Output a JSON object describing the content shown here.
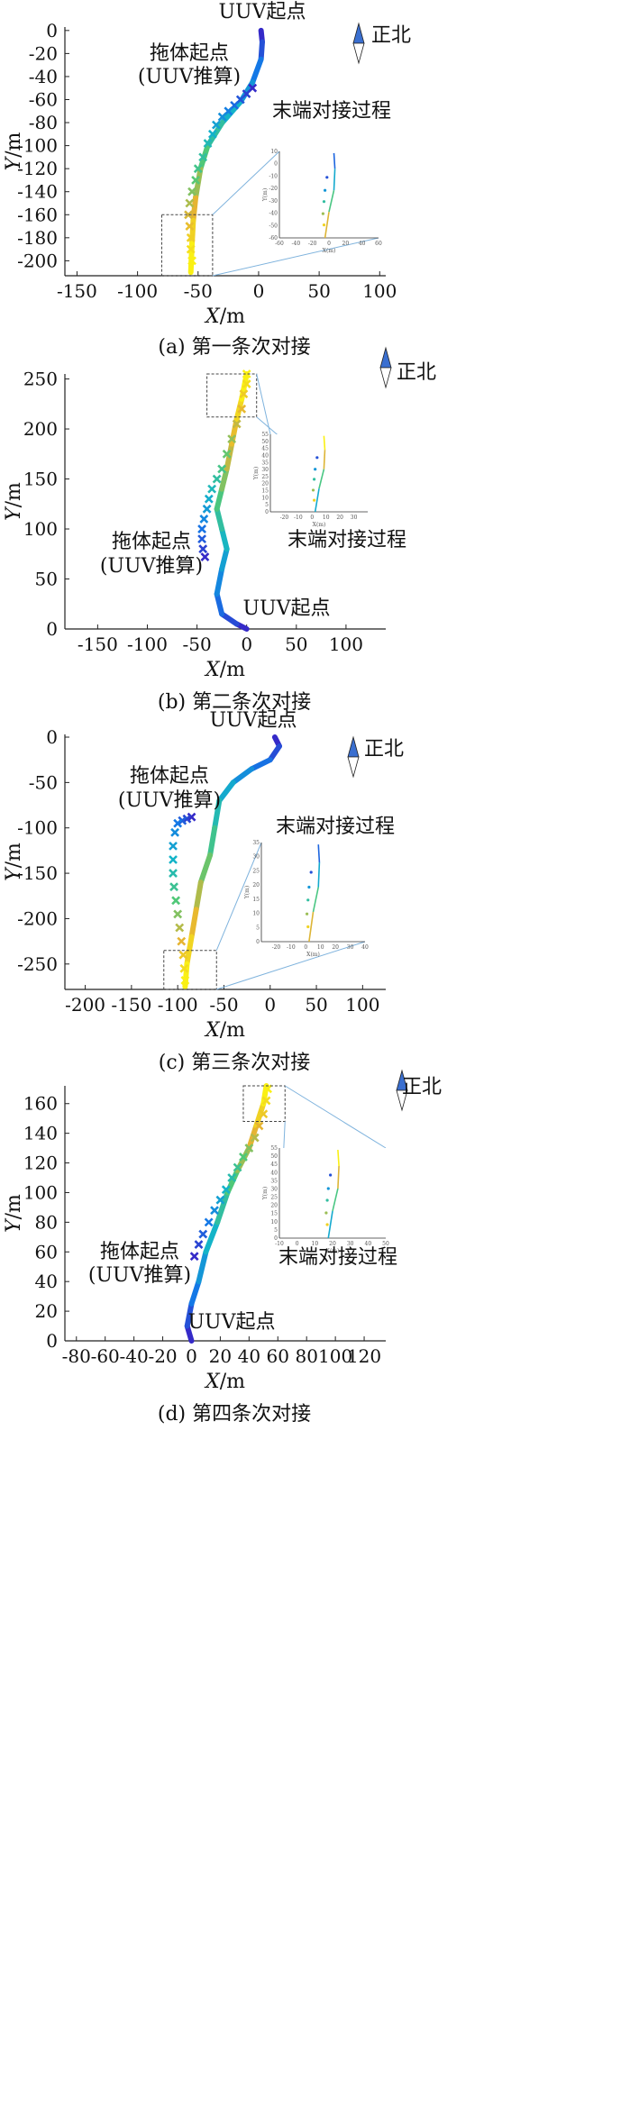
{
  "figure": {
    "north_label": "正北",
    "uuv_start_label": "UUV起点",
    "tow_start_label_line1": "拖体起点",
    "tow_start_label_line2": "(UUV推算)",
    "docking_label": "末端对接过程",
    "inset_xlabel": "X(m)",
    "inset_ylabel": "Y(m)"
  },
  "chart_data": [
    {
      "type": "line",
      "title": "(a) 第一条次对接",
      "xlabel": "X/m",
      "ylabel": "Y/m",
      "xlim": [
        -160,
        105
      ],
      "ylim": [
        -213,
        3
      ],
      "xticks": [
        -150,
        -100,
        -50,
        0,
        50,
        100
      ],
      "yticks": [
        0,
        -20,
        -40,
        -60,
        -80,
        -100,
        -120,
        -140,
        -160,
        -180,
        -200
      ],
      "uuv_track": [
        [
          2,
          0
        ],
        [
          3,
          -10
        ],
        [
          2,
          -25
        ],
        [
          -5,
          -45
        ],
        [
          -15,
          -62
        ],
        [
          -30,
          -80
        ],
        [
          -42,
          -100
        ],
        [
          -48,
          -120
        ],
        [
          -52,
          -145
        ],
        [
          -54,
          -165
        ],
        [
          -55,
          -185
        ],
        [
          -56,
          -210
        ]
      ],
      "tow_estimates": [
        [
          -5,
          -50
        ],
        [
          -10,
          -55
        ],
        [
          -15,
          -60
        ],
        [
          -20,
          -65
        ],
        [
          -25,
          -70
        ],
        [
          -30,
          -75
        ],
        [
          -35,
          -82
        ],
        [
          -38,
          -90
        ],
        [
          -42,
          -98
        ],
        [
          -46,
          -110
        ],
        [
          -50,
          -120
        ],
        [
          -52,
          -130
        ],
        [
          -55,
          -140
        ],
        [
          -57,
          -150
        ],
        [
          -58,
          -160
        ],
        [
          -57,
          -170
        ],
        [
          -56,
          -180
        ],
        [
          -56,
          -190
        ],
        [
          -55,
          -200
        ]
      ],
      "zoom_box": {
        "x": [
          -80,
          -38
        ],
        "y": [
          -213,
          -160
        ]
      },
      "inset": {
        "xlim": [
          -60,
          60
        ],
        "ylim": [
          -60,
          10
        ],
        "xticks": [
          -60,
          -40,
          -20,
          0,
          20,
          40,
          60
        ],
        "yticks": [
          10,
          0,
          -10,
          -20,
          -30,
          -40,
          -50,
          -60
        ]
      }
    },
    {
      "type": "line",
      "title": "(b) 第二条次对接",
      "xlabel": "X/m",
      "ylabel": "Y/m",
      "xlim": [
        -183,
        140
      ],
      "ylim": [
        0,
        255
      ],
      "xticks": [
        -150,
        -100,
        -50,
        0,
        50,
        100
      ],
      "yticks": [
        0,
        50,
        100,
        150,
        200,
        250
      ],
      "uuv_track": [
        [
          0,
          0
        ],
        [
          -10,
          5
        ],
        [
          -25,
          15
        ],
        [
          -30,
          35
        ],
        [
          -25,
          60
        ],
        [
          -20,
          80
        ],
        [
          -25,
          100
        ],
        [
          -30,
          120
        ],
        [
          -25,
          140
        ],
        [
          -20,
          160
        ],
        [
          -15,
          185
        ],
        [
          -10,
          210
        ],
        [
          -5,
          230
        ],
        [
          0,
          255
        ]
      ],
      "tow_estimates": [
        [
          -42,
          72
        ],
        [
          -44,
          80
        ],
        [
          -45,
          90
        ],
        [
          -45,
          100
        ],
        [
          -43,
          110
        ],
        [
          -40,
          120
        ],
        [
          -38,
          130
        ],
        [
          -35,
          140
        ],
        [
          -30,
          150
        ],
        [
          -25,
          160
        ],
        [
          -20,
          175
        ],
        [
          -15,
          190
        ],
        [
          -10,
          205
        ],
        [
          -5,
          220
        ],
        [
          -3,
          235
        ],
        [
          0,
          245
        ],
        [
          0,
          255
        ]
      ],
      "zoom_box": {
        "x": [
          -40,
          10
        ],
        "y": [
          212,
          255
        ]
      },
      "inset": {
        "xlim": [
          -30,
          40
        ],
        "ylim": [
          0,
          55
        ],
        "xticks": [
          -20,
          -10,
          0,
          10,
          20,
          30
        ],
        "yticks": [
          0,
          5,
          10,
          15,
          20,
          25,
          30,
          35,
          40,
          45,
          50,
          55
        ]
      }
    },
    {
      "type": "line",
      "title": "(c) 第三条次对接",
      "xlabel": "X/m",
      "ylabel": "Y/m",
      "xlim": [
        -222,
        125
      ],
      "ylim": [
        -278,
        3
      ],
      "xticks": [
        -200,
        -150,
        -100,
        -50,
        0,
        50,
        100
      ],
      "yticks": [
        0,
        -50,
        -100,
        -150,
        -200,
        -250
      ],
      "uuv_track": [
        [
          5,
          0
        ],
        [
          10,
          -10
        ],
        [
          0,
          -25
        ],
        [
          -20,
          -35
        ],
        [
          -40,
          -50
        ],
        [
          -55,
          -70
        ],
        [
          -60,
          -100
        ],
        [
          -65,
          -130
        ],
        [
          -75,
          -160
        ],
        [
          -80,
          -190
        ],
        [
          -85,
          -220
        ],
        [
          -90,
          -250
        ],
        [
          -92,
          -275
        ]
      ],
      "tow_estimates": [
        [
          -85,
          -88
        ],
        [
          -90,
          -90
        ],
        [
          -95,
          -92
        ],
        [
          -100,
          -95
        ],
        [
          -103,
          -105
        ],
        [
          -105,
          -120
        ],
        [
          -105,
          -135
        ],
        [
          -105,
          -150
        ],
        [
          -104,
          -165
        ],
        [
          -102,
          -180
        ],
        [
          -100,
          -195
        ],
        [
          -98,
          -210
        ],
        [
          -96,
          -225
        ],
        [
          -94,
          -240
        ],
        [
          -93,
          -255
        ],
        [
          -92,
          -268
        ]
      ],
      "zoom_box": {
        "x": [
          -115,
          -58
        ],
        "y": [
          -278,
          -235
        ]
      },
      "inset": {
        "xlim": [
          -30,
          40
        ],
        "ylim": [
          0,
          35
        ],
        "xticks": [
          -20,
          -10,
          0,
          10,
          20,
          30,
          40
        ],
        "yticks": [
          0,
          5,
          10,
          15,
          20,
          25,
          30,
          35
        ]
      }
    },
    {
      "type": "line",
      "title": "(d) 第四条次对接",
      "xlabel": "X/m",
      "ylabel": "Y/m",
      "xlim": [
        -88,
        135
      ],
      "ylim": [
        0,
        172
      ],
      "xticks": [
        -80,
        -60,
        -40,
        -20,
        0,
        20,
        40,
        60,
        80,
        100,
        120
      ],
      "yticks": [
        0,
        20,
        40,
        60,
        80,
        100,
        120,
        140,
        160
      ],
      "uuv_track": [
        [
          0,
          0
        ],
        [
          -3,
          10
        ],
        [
          0,
          25
        ],
        [
          5,
          40
        ],
        [
          10,
          60
        ],
        [
          18,
          80
        ],
        [
          25,
          100
        ],
        [
          32,
          115
        ],
        [
          40,
          130
        ],
        [
          45,
          145
        ],
        [
          50,
          160
        ],
        [
          52,
          172
        ]
      ],
      "tow_estimates": [
        [
          2,
          57
        ],
        [
          5,
          65
        ],
        [
          8,
          72
        ],
        [
          12,
          80
        ],
        [
          16,
          88
        ],
        [
          20,
          95
        ],
        [
          24,
          102
        ],
        [
          28,
          110
        ],
        [
          32,
          117
        ],
        [
          36,
          124
        ],
        [
          40,
          130
        ],
        [
          44,
          137
        ],
        [
          47,
          145
        ],
        [
          50,
          153
        ],
        [
          52,
          162
        ],
        [
          53,
          170
        ]
      ],
      "zoom_box": {
        "x": [
          36,
          65
        ],
        "y": [
          148,
          172
        ]
      },
      "inset": {
        "xlim": [
          -10,
          50
        ],
        "ylim": [
          0,
          55
        ],
        "xticks": [
          -10,
          0,
          10,
          20,
          30,
          40,
          50
        ],
        "yticks": [
          0,
          5,
          10,
          15,
          20,
          25,
          30,
          35,
          40,
          45,
          50,
          55
        ]
      }
    }
  ]
}
